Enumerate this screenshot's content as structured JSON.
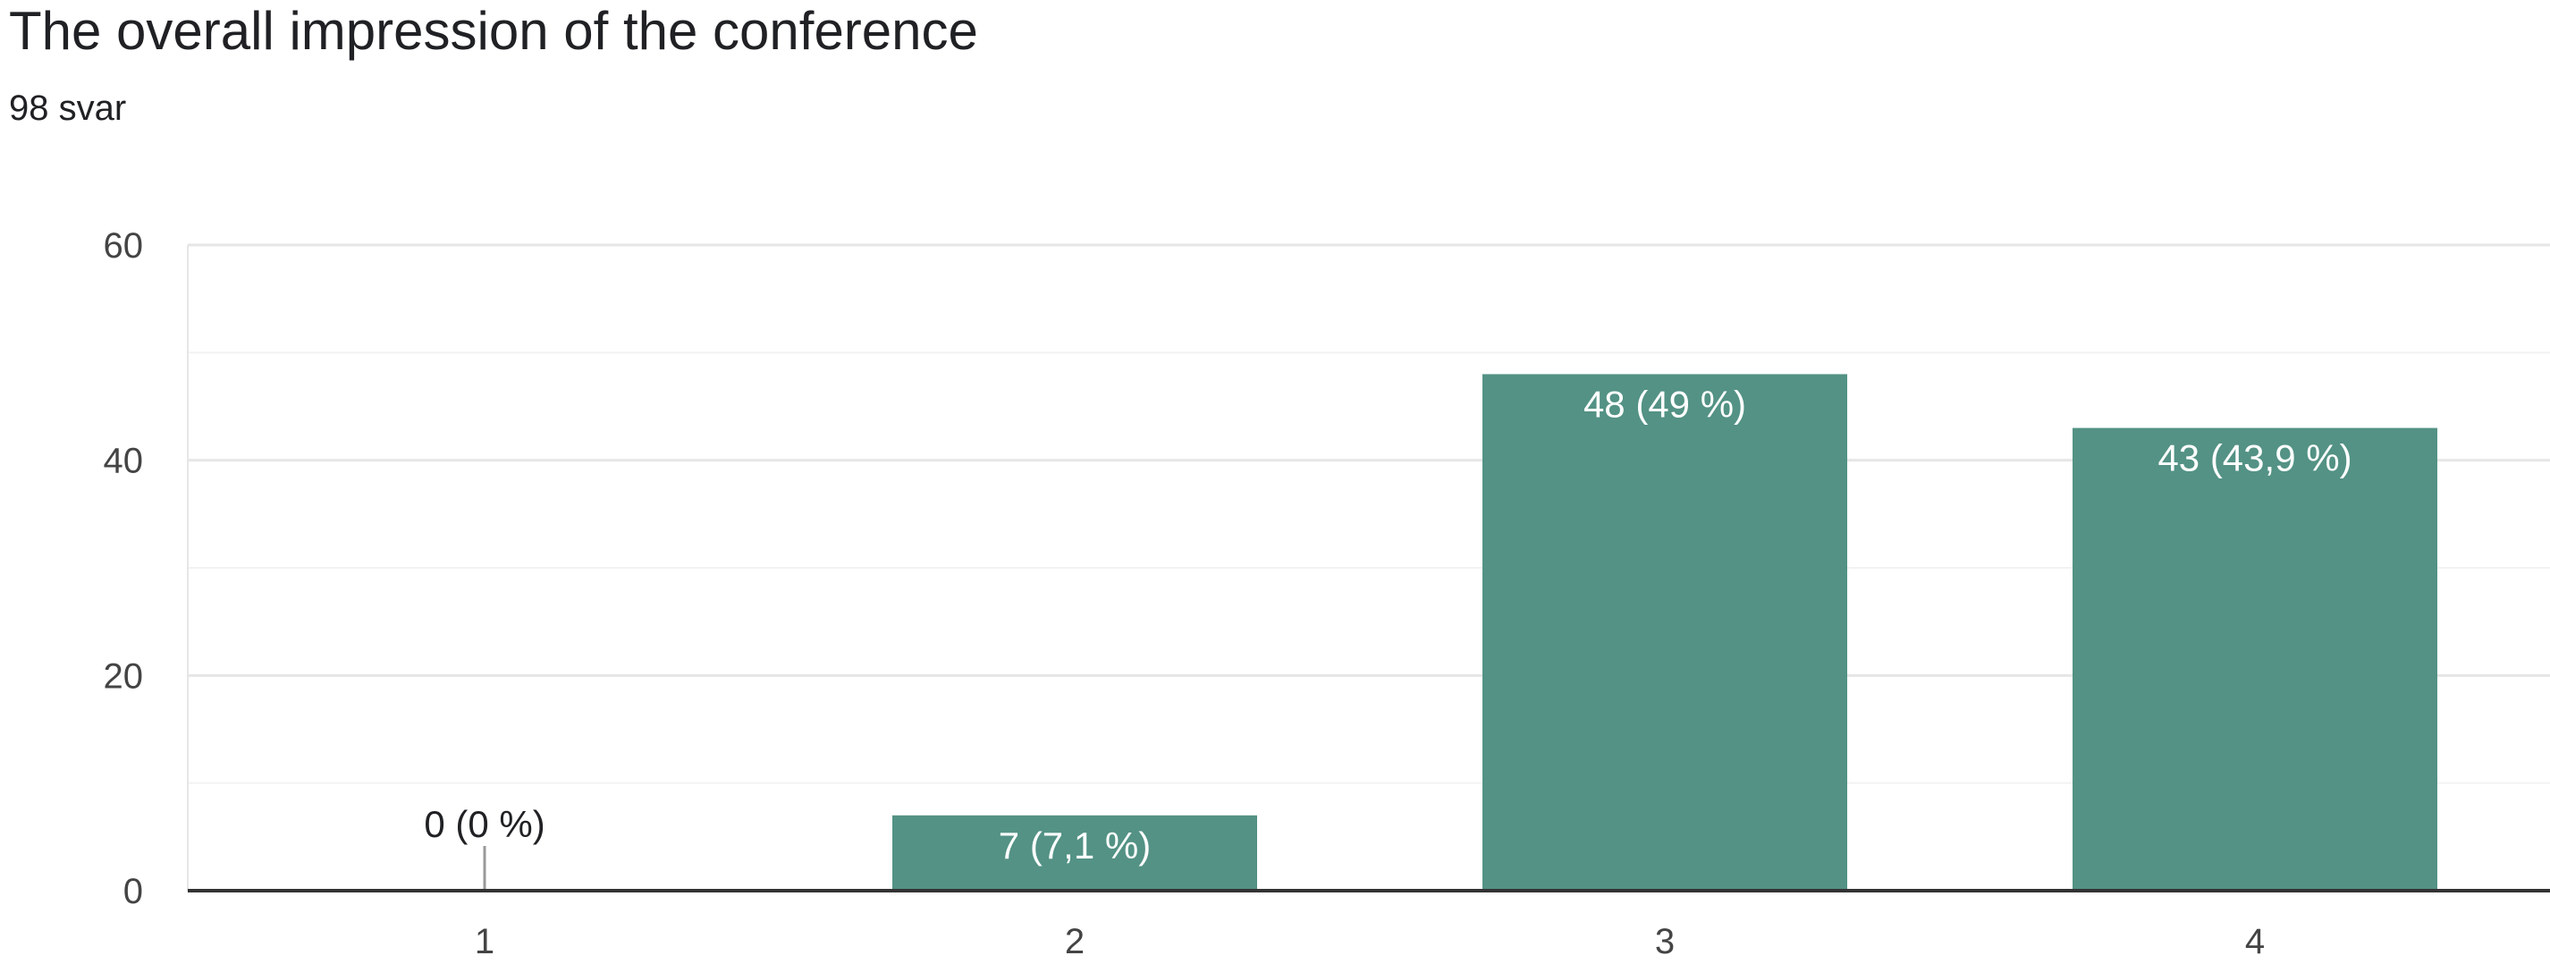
{
  "header": {
    "title": "The overall impression of the conference",
    "subtitle": "98 svar"
  },
  "colors": {
    "bar": "#539285",
    "grid_major": "#e6e6e6",
    "grid_minor": "#f2f2f2",
    "axis": "#333333",
    "label_inside": "#ffffff",
    "label_outside": "#202124"
  },
  "chart_data": {
    "type": "bar",
    "title": "The overall impression of the conference",
    "subtitle": "98 svar",
    "categories": [
      "1",
      "2",
      "3",
      "4"
    ],
    "values": [
      0,
      7,
      48,
      43
    ],
    "data_labels": [
      "0 (0 %)",
      "7 (7,1 %)",
      "48 (49 %)",
      "43 (43,9 %)"
    ],
    "y_ticks": [
      0,
      20,
      40,
      60
    ],
    "ylim": [
      0,
      60
    ],
    "minor_gridlines": true,
    "legend": "none"
  }
}
